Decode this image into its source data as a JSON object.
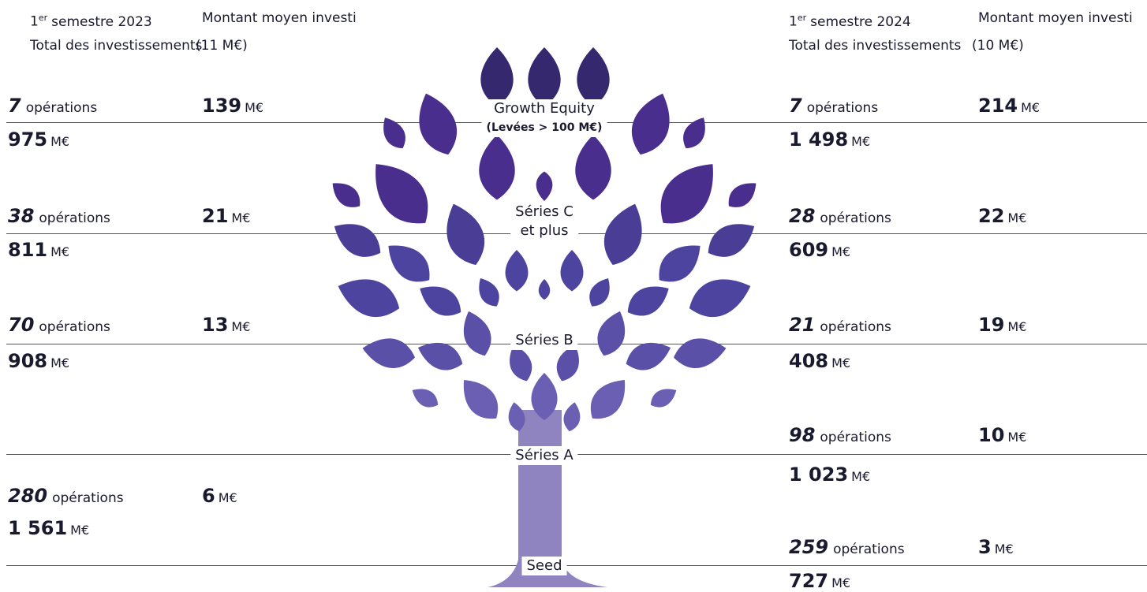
{
  "units": {
    "operations": "opérations",
    "currency": "M€"
  },
  "left": {
    "header": {
      "num": "1",
      "sup": "er",
      "period": "semestre 2023",
      "total_label": "Total des investissements",
      "average_label": "Montant moyen investi",
      "average_overall": "(11 M€)"
    },
    "rows": [
      {
        "operations": "7",
        "average": "139",
        "total": "975"
      },
      {
        "operations": "38",
        "average": "21",
        "total": "811"
      },
      {
        "operations": "70",
        "average": "13",
        "total": "908"
      },
      {
        "operations": "280",
        "average": "6",
        "total": "1 561"
      }
    ]
  },
  "right": {
    "header": {
      "num": "1",
      "sup": "er",
      "period": "semestre 2024",
      "total_label": "Total des investissements",
      "average_label": "Montant moyen investi",
      "average_overall": "(10 M€)"
    },
    "rows": [
      {
        "operations": "7",
        "average": "214",
        "total": "1 498"
      },
      {
        "operations": "28",
        "average": "22",
        "total": "609"
      },
      {
        "operations": "21",
        "average": "19",
        "total": "408"
      },
      {
        "operations": "98",
        "average": "10",
        "total": "1 023"
      },
      {
        "operations": "259",
        "average": "3",
        "total": "727"
      }
    ]
  },
  "stages": [
    {
      "label": "Growth Equity",
      "note": "(Levées > 100 M€)"
    },
    {
      "label": "Séries C",
      "note": "et plus"
    },
    {
      "label": "Séries B"
    },
    {
      "label": "Séries A"
    },
    {
      "label": "Seed"
    }
  ]
}
